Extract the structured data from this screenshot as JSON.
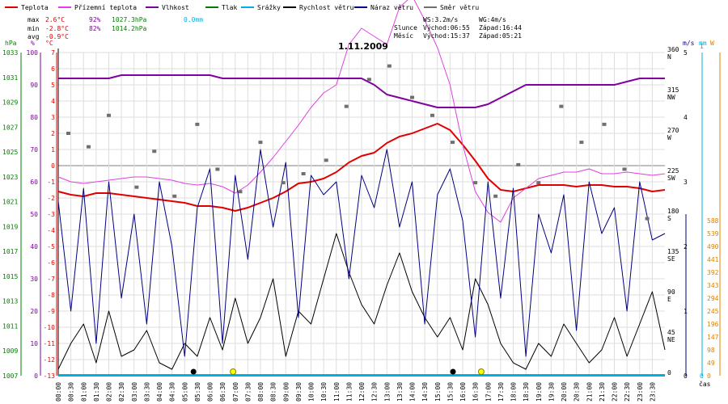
{
  "chart_data": {
    "type": "line",
    "title": "1.11.2009",
    "time_axis_label": "čas",
    "colors": {
      "teplota": "#e00000",
      "prizemni": "#e040e0",
      "vlhkost": "#8000a0",
      "tlak": "#008000",
      "srazky": "#00b0e0",
      "rychlost": "#000000",
      "naraz": "#000080",
      "smer": "#707070",
      "axis_hpa": "#008000",
      "axis_pct": "#8000a0",
      "axis_c": "#e00000",
      "axis_ms": "#000080",
      "axis_mm": "#00b0e0",
      "axis_w": "#e08000",
      "grid": "#dddddd",
      "zero": "#808080",
      "sun": "#ffff00"
    },
    "legend": [
      {
        "key": "teplota",
        "label": "Teplota"
      },
      {
        "key": "prizemni",
        "label": "Přízemní teplota"
      },
      {
        "key": "vlhkost",
        "label": "Vlhkost"
      },
      {
        "key": "tlak",
        "label": "Tlak"
      },
      {
        "key": "srazky",
        "label": "Srážky"
      },
      {
        "key": "rychlost",
        "label": "Rychlost větru"
      },
      {
        "key": "naraz",
        "label": "Náraz větru"
      },
      {
        "key": "smer",
        "label": "Směr větru"
      }
    ],
    "stats": {
      "max_label": "max",
      "max_temp": "2.6°C",
      "max_hum": "92%",
      "max_press": "1027.3hPa",
      "max_rain": "0.0mm",
      "min_label": "min",
      "min_temp": "-2.8°C",
      "min_hum": "82%",
      "min_press": "1014.2hPa",
      "avg_label": "avg",
      "avg_temp": "-0.9°C"
    },
    "sun_moon": {
      "ws": "WS:3.2m/s",
      "wg": "WG:4m/s",
      "slunce_label": "Slunce",
      "slunce_vychod": "Východ:06:55",
      "slunce_zapad": "Západ:16:44",
      "mesic_label": "Měsíc",
      "mesic_vychod": "Východ:15:37",
      "mesic_zapad": "Západ:05:21"
    },
    "unit_labels": {
      "hpa": "hPa",
      "pct": "%",
      "c": "°C",
      "ms": "m/s",
      "mm": "mm",
      "w": "W"
    },
    "axes": {
      "temp_c": {
        "min": -13,
        "max": 7,
        "ticks": [
          7,
          6,
          5,
          4,
          3,
          2,
          1,
          0,
          -1,
          -2,
          -3,
          -4,
          -5,
          -6,
          -7,
          -8,
          -9,
          -10,
          -11,
          -12,
          -13
        ]
      },
      "humidity_pct": {
        "min": 0,
        "max": 100,
        "ticks": [
          100,
          90,
          80,
          70,
          60,
          50,
          40,
          30,
          20,
          10,
          0
        ]
      },
      "pressure_hpa": {
        "min": 1007,
        "max": 1033,
        "ticks": [
          1033,
          1031,
          1029,
          1027,
          1025,
          1023,
          1021,
          1019,
          1017,
          1015,
          1013,
          1011,
          1009,
          1007
        ]
      },
      "wind_dir_deg": {
        "min": 0,
        "max": 360,
        "ticks": [
          {
            "value": 360,
            "label": "360",
            "dir": "N"
          },
          {
            "value": 315,
            "label": "315",
            "dir": "NW"
          },
          {
            "value": 270,
            "label": "270",
            "dir": "W"
          },
          {
            "value": 225,
            "label": "225",
            "dir": "SW"
          },
          {
            "value": 180,
            "label": "180",
            "dir": "S"
          },
          {
            "value": 135,
            "label": "135",
            "dir": "SE"
          },
          {
            "value": 90,
            "label": "90",
            "dir": "E"
          },
          {
            "value": 45,
            "label": "45",
            "dir": "NE"
          },
          {
            "value": 0,
            "label": "0",
            "dir": ""
          }
        ]
      },
      "wind_ms": {
        "min": 0,
        "max": 5,
        "ticks": [
          5,
          4,
          3,
          2,
          1,
          0
        ]
      },
      "rain_mm": {
        "min": 0,
        "max": 1,
        "ticks": [
          1,
          0
        ]
      },
      "radiation_w": {
        "min": 0,
        "max": 588,
        "ticks": [
          588,
          539,
          490,
          441,
          392,
          343,
          294,
          245,
          196,
          147,
          98,
          49,
          0
        ]
      }
    },
    "time_ticks": [
      "00:00",
      "00:30",
      "01:00",
      "01:30",
      "02:00",
      "02:30",
      "03:00",
      "03:30",
      "04:00",
      "04:30",
      "05:00",
      "05:30",
      "06:00",
      "06:30",
      "07:00",
      "07:30",
      "08:00",
      "08:30",
      "09:00",
      "09:30",
      "10:00",
      "10:30",
      "11:00",
      "11:30",
      "12:00",
      "12:30",
      "13:00",
      "13:30",
      "14:00",
      "14:30",
      "15:00",
      "15:30",
      "16:00",
      "16:30",
      "17:00",
      "17:30",
      "18:00",
      "18:30",
      "19:00",
      "19:30",
      "20:00",
      "20:30",
      "21:00",
      "21:30",
      "22:00",
      "22:30",
      "23:00",
      "23:30"
    ],
    "series": [
      {
        "key": "teplota",
        "name": "Teplota",
        "axis": "temp_c",
        "x": [
          0,
          0.5,
          1,
          1.5,
          2,
          2.5,
          3,
          3.5,
          4,
          4.5,
          5,
          5.5,
          6,
          6.5,
          7,
          7.5,
          8,
          8.5,
          9,
          9.5,
          10,
          10.5,
          11,
          11.5,
          12,
          12.5,
          13,
          13.5,
          14,
          14.5,
          15,
          15.5,
          16,
          16.5,
          17,
          17.5,
          18,
          18.5,
          19,
          19.5,
          20,
          20.5,
          21,
          21.5,
          22,
          22.5,
          23,
          23.5,
          24
        ],
        "y": [
          -1.6,
          -1.8,
          -1.9,
          -1.7,
          -1.7,
          -1.8,
          -1.9,
          -2.0,
          -2.1,
          -2.2,
          -2.3,
          -2.5,
          -2.5,
          -2.6,
          -2.8,
          -2.6,
          -2.3,
          -2.0,
          -1.6,
          -1.1,
          -1.0,
          -0.8,
          -0.4,
          0.2,
          0.6,
          0.8,
          1.4,
          1.8,
          2.0,
          2.3,
          2.6,
          2.2,
          1.3,
          0.3,
          -0.8,
          -1.5,
          -1.6,
          -1.4,
          -1.2,
          -1.2,
          -1.2,
          -1.3,
          -1.2,
          -1.2,
          -1.3,
          -1.3,
          -1.4,
          -1.6,
          -1.5
        ]
      },
      {
        "key": "prizemni",
        "name": "Přízemní teplota",
        "axis": "temp_c",
        "x": [
          0,
          0.5,
          1,
          1.5,
          2,
          2.5,
          3,
          3.5,
          4,
          4.5,
          5,
          5.5,
          6,
          6.5,
          7,
          7.5,
          8,
          8.5,
          9,
          9.5,
          10,
          10.5,
          11,
          11.5,
          12,
          12.5,
          13,
          13.5,
          14,
          14.5,
          15,
          15.5,
          16,
          16.5,
          17,
          17.5,
          18,
          18.5,
          19,
          19.5,
          20,
          20.5,
          21,
          21.5,
          22,
          22.5,
          23,
          23.5,
          24
        ],
        "y": [
          -0.7,
          -1.0,
          -1.1,
          -1.0,
          -0.9,
          -0.8,
          -0.7,
          -0.7,
          -0.8,
          -0.9,
          -1.1,
          -1.2,
          -1.1,
          -1.3,
          -1.7,
          -1.2,
          -0.4,
          0.5,
          1.5,
          2.5,
          3.6,
          4.5,
          5.0,
          7.5,
          8.5,
          8.0,
          7.5,
          9.8,
          10.5,
          9.0,
          7.3,
          5.0,
          1.3,
          -1.6,
          -2.9,
          -3.5,
          -2.0,
          -1.4,
          -0.8,
          -0.6,
          -0.4,
          -0.4,
          -0.2,
          -0.5,
          -0.5,
          -0.4,
          -0.5,
          -0.6,
          -0.5
        ]
      },
      {
        "key": "vlhkost",
        "name": "Vlhkost",
        "axis": "humidity_pct",
        "x": [
          0,
          0.5,
          1,
          1.5,
          2,
          2.5,
          3,
          3.5,
          4,
          4.5,
          5,
          5.5,
          6,
          6.5,
          7,
          7.5,
          8,
          8.5,
          9,
          9.5,
          10,
          10.5,
          11,
          11.5,
          12,
          12.5,
          13,
          13.5,
          14,
          14.5,
          15,
          15.5,
          16,
          16.5,
          17,
          17.5,
          18,
          18.5,
          19,
          19.5,
          20,
          20.5,
          21,
          21.5,
          22,
          22.5,
          23,
          23.5,
          24
        ],
        "y": [
          92,
          92,
          92,
          92,
          92,
          93,
          93,
          93,
          93,
          93,
          93,
          93,
          93,
          92,
          92,
          92,
          92,
          92,
          92,
          92,
          92,
          92,
          92,
          92,
          92,
          90,
          87,
          86,
          85,
          84,
          83,
          83,
          83,
          83,
          84,
          86,
          88,
          90,
          90,
          90,
          90,
          90,
          90,
          90,
          90,
          91,
          92,
          92,
          92
        ]
      },
      {
        "key": "rychlost",
        "name": "Rychlost větru",
        "axis": "wind_ms",
        "x": [
          0,
          0.5,
          1,
          1.5,
          2,
          2.5,
          3,
          3.5,
          4,
          4.5,
          5,
          5.5,
          6,
          6.5,
          7,
          7.5,
          8,
          8.5,
          9,
          9.5,
          10,
          10.5,
          11,
          11.5,
          12,
          12.5,
          13,
          13.5,
          14,
          14.5,
          15,
          15.5,
          16,
          16.5,
          17,
          17.5,
          18,
          18.5,
          19,
          19.5,
          20,
          20.5,
          21,
          21.5,
          22,
          22.5,
          23,
          23.5,
          24
        ],
        "y": [
          0.1,
          0.5,
          0.8,
          0.2,
          1.0,
          0.3,
          0.4,
          0.7,
          0.2,
          0.1,
          0.5,
          0.3,
          0.9,
          0.4,
          1.2,
          0.5,
          0.9,
          1.5,
          0.3,
          1.0,
          0.8,
          1.5,
          2.2,
          1.6,
          1.1,
          0.8,
          1.4,
          1.9,
          1.3,
          0.9,
          0.6,
          0.9,
          0.4,
          1.5,
          1.1,
          0.5,
          0.2,
          0.1,
          0.5,
          0.3,
          0.8,
          0.5,
          0.2,
          0.4,
          0.9,
          0.3,
          0.8,
          1.3,
          0.4
        ]
      },
      {
        "key": "naraz",
        "name": "Náraz větru",
        "axis": "wind_ms",
        "x": [
          0,
          0.5,
          1,
          1.5,
          2,
          2.5,
          3,
          3.5,
          4,
          4.5,
          5,
          5.5,
          6,
          6.5,
          7,
          7.5,
          8,
          8.5,
          9,
          9.5,
          10,
          10.5,
          11,
          11.5,
          12,
          12.5,
          13,
          13.5,
          14,
          14.5,
          15,
          15.5,
          16,
          16.5,
          17,
          17.5,
          18,
          18.5,
          19,
          19.5,
          20,
          20.5,
          21,
          21.5,
          22,
          22.5,
          23,
          23.5,
          24
        ],
        "y": [
          2.7,
          1.0,
          2.9,
          0.5,
          3.0,
          1.2,
          2.5,
          0.8,
          3.0,
          2.0,
          0.3,
          2.6,
          3.2,
          0.5,
          3.1,
          1.8,
          3.5,
          2.3,
          3.3,
          0.9,
          3.1,
          2.8,
          3.0,
          1.5,
          3.1,
          2.6,
          3.5,
          2.3,
          3.0,
          0.8,
          2.8,
          3.2,
          2.4,
          0.6,
          3.0,
          1.2,
          2.9,
          0.3,
          2.5,
          1.9,
          2.8,
          0.7,
          3.0,
          2.2,
          2.6,
          1.0,
          3.0,
          2.1,
          2.2
        ]
      },
      {
        "key": "smer",
        "name": "Směr větru",
        "axis": "wind_dir_deg",
        "x": [
          0.4,
          1.2,
          2.0,
          3.1,
          3.8,
          4.6,
          5.5,
          6.3,
          7.2,
          8.0,
          8.9,
          9.7,
          10.6,
          11.4,
          12.3,
          13.1,
          14.0,
          14.8,
          15.6,
          16.5,
          17.3,
          18.2,
          19.0,
          19.9,
          20.7,
          21.6,
          22.4,
          23.3
        ],
        "y": [
          270,
          255,
          290,
          210,
          250,
          200,
          280,
          230,
          205,
          260,
          215,
          225,
          240,
          300,
          330,
          345,
          310,
          290,
          260,
          215,
          200,
          235,
          215,
          300,
          260,
          280,
          230,
          175
        ]
      }
    ]
  }
}
